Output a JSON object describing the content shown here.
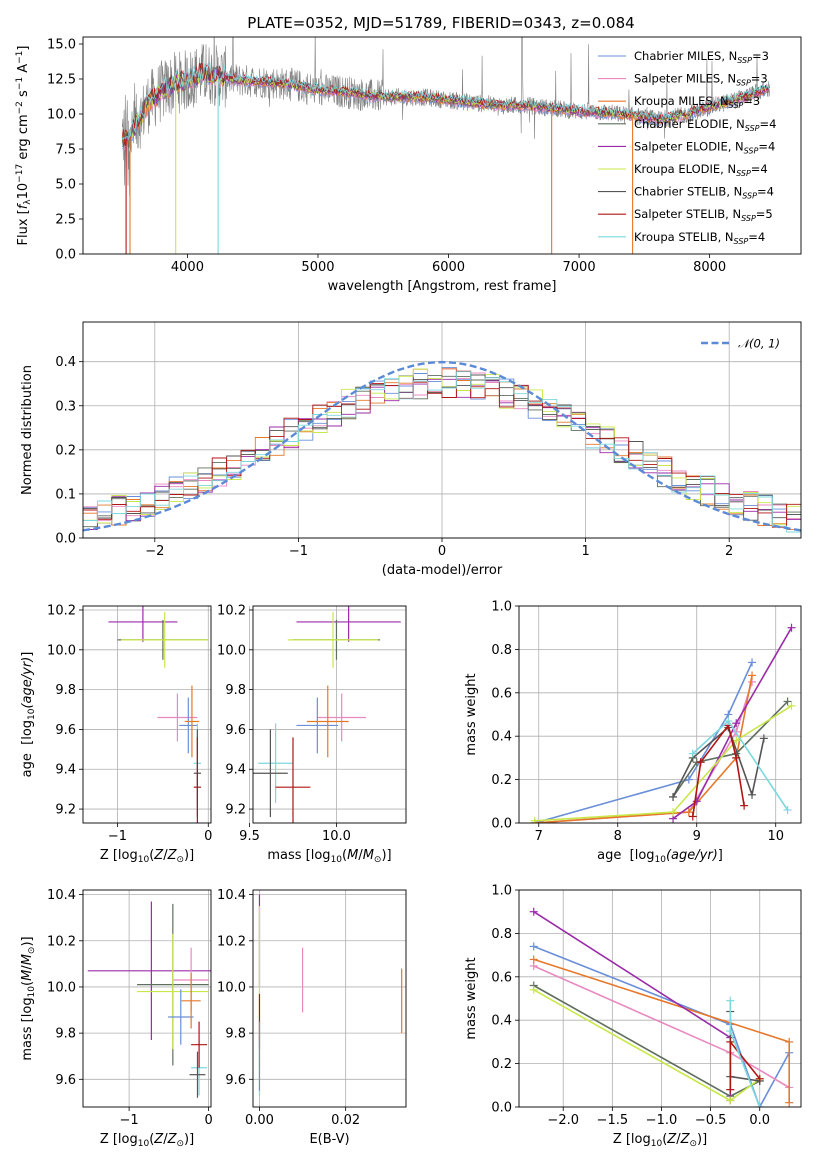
{
  "title": "PLATE=0352, MJD=51789, FIBERID=0343, z=0.084",
  "colors": {
    "Chabrier MILES": "#6a8fd8",
    "Salpeter MILES": "#e889c0",
    "Kroupa MILES": "#e6782a",
    "Chabrier ELODIE": "#5f6f5f",
    "Salpeter ELODIE": "#9a2ba8",
    "Kroupa ELODIE": "#c8e84a",
    "Chabrier STELIB": "#555555",
    "Salpeter STELIB": "#b01515",
    "Kroupa STELIB": "#7dd8de",
    "data": "#808080",
    "gauss": "#5b8bd6"
  },
  "chart_data": [
    {
      "id": "spectrum",
      "type": "line",
      "xlabel": "wavelength [Angstrom, rest frame]",
      "ylabel": "Flux [f_λ 10^-17 erg cm^-2 s^-1 A^-1]",
      "xlim": [
        3200,
        8700
      ],
      "ylim": [
        0,
        15.5
      ],
      "xticks": [
        4000,
        5000,
        6000,
        7000,
        8000
      ],
      "yticks": [
        0.0,
        2.5,
        5.0,
        7.5,
        10.0,
        12.5,
        15.0
      ],
      "ytick_labels": [
        "0.0",
        "2.5",
        "5.0",
        "7.5",
        "10.0",
        "12.5",
        "15.0"
      ],
      "legend_loc": "upper right",
      "legend": [
        {
          "name": "Chabrier MILES",
          "nssp": "3"
        },
        {
          "name": "Salpeter MILES",
          "nssp": "3"
        },
        {
          "name": "Kroupa MILES",
          "nssp": "3"
        },
        {
          "name": "Chabrier ELODIE",
          "nssp": "4"
        },
        {
          "name": "Salpeter ELODIE",
          "nssp": "4"
        },
        {
          "name": "Kroupa ELODIE",
          "nssp": "4"
        },
        {
          "name": "Chabrier STELIB",
          "nssp": "4"
        },
        {
          "name": "Salpeter STELIB",
          "nssp": "5"
        },
        {
          "name": "Kroupa STELIB",
          "nssp": "4"
        }
      ],
      "continuum": {
        "x": [
          3550,
          3700,
          3800,
          3900,
          4000,
          4100,
          4200,
          4400,
          4600,
          4800,
          5000,
          5200,
          5400,
          5600,
          5800,
          6000,
          6200,
          6400,
          6600,
          6800,
          7000,
          7200,
          7400,
          7600,
          7800,
          8000,
          8200,
          8450
        ],
        "y": [
          8.2,
          10.8,
          11.6,
          12.2,
          12.4,
          12.9,
          12.8,
          12.4,
          12.3,
          12.1,
          11.7,
          11.6,
          11.3,
          11.2,
          11.2,
          11.0,
          10.8,
          10.6,
          10.6,
          10.4,
          10.2,
          10.1,
          9.9,
          9.6,
          9.9,
          10.5,
          11.0,
          11.8
        ]
      }
    },
    {
      "id": "residuals",
      "type": "line",
      "xlabel": "(data-model)/error",
      "ylabel": "Normed distribution",
      "xlim": [
        -2.5,
        2.5
      ],
      "ylim": [
        0,
        0.49
      ],
      "xticks": [
        -2,
        -1,
        0,
        1,
        2
      ],
      "yticks": [
        0.0,
        0.1,
        0.2,
        0.3,
        0.4
      ],
      "ytick_labels": [
        "0.0",
        "0.1",
        "0.2",
        "0.3",
        "0.4"
      ],
      "legend_label": "𝒩(0, 1)",
      "bin_width": 0.1
    },
    {
      "id": "age_vs_Z",
      "type": "scatter",
      "xlabel": "Z [log10(Z/Z⊙)]",
      "ylabel": "age [log10(age/yr)]",
      "xlim": [
        -1.38,
        0.03
      ],
      "ylim": [
        9.13,
        10.22
      ],
      "xticks": [
        -1,
        0
      ],
      "yticks": [
        9.2,
        9.4,
        9.6,
        9.8,
        10.0,
        10.2
      ],
      "points": [
        {
          "model": "Salpeter ELODIE",
          "x": -0.72,
          "xerr": 0.38,
          "y": 10.14,
          "yerr": 0.1
        },
        {
          "model": "Chabrier ELODIE",
          "x": -0.5,
          "xerr": 0.5,
          "y": 10.05,
          "yerr": 0.1
        },
        {
          "model": "Kroupa ELODIE",
          "x": -0.48,
          "xerr": 0.48,
          "y": 10.05,
          "yerr": 0.14
        },
        {
          "model": "Salpeter MILES",
          "x": -0.34,
          "xerr": 0.22,
          "y": 9.66,
          "yerr": 0.12
        },
        {
          "model": "Chabrier MILES",
          "x": -0.22,
          "xerr": 0.1,
          "y": 9.62,
          "yerr": 0.14
        },
        {
          "model": "Kroupa MILES",
          "x": -0.18,
          "xerr": 0.08,
          "y": 9.64,
          "yerr": 0.18
        },
        {
          "model": "Kroupa STELIB",
          "x": -0.12,
          "xerr": 0.04,
          "y": 9.43,
          "yerr": 0.2
        },
        {
          "model": "Chabrier STELIB",
          "x": -0.12,
          "xerr": 0.04,
          "y": 9.38,
          "yerr": 0.22
        },
        {
          "model": "Salpeter STELIB",
          "x": -0.12,
          "xerr": 0.04,
          "y": 9.31,
          "yerr": 0.25
        }
      ]
    },
    {
      "id": "age_vs_mass",
      "type": "scatter",
      "xlabel": "mass [log10(M/M⊙)]",
      "ylabel": "",
      "xlim": [
        9.52,
        10.4
      ],
      "ylim": [
        9.13,
        10.22
      ],
      "xticks": [
        9.5,
        10.0
      ],
      "xtick_labels": [
        "9.5",
        "10.0"
      ],
      "yticks": [
        9.2,
        9.4,
        9.6,
        9.8,
        10.0,
        10.2
      ],
      "points": [
        {
          "model": "Salpeter ELODIE",
          "x": 10.07,
          "xerr": 0.3,
          "y": 10.14,
          "yerr": 0.1
        },
        {
          "model": "Chabrier ELODIE",
          "x": 10.0,
          "xerr": 0.25,
          "y": 10.05,
          "yerr": 0.1
        },
        {
          "model": "Kroupa ELODIE",
          "x": 9.98,
          "xerr": 0.26,
          "y": 10.05,
          "yerr": 0.14
        },
        {
          "model": "Salpeter MILES",
          "x": 10.03,
          "xerr": 0.14,
          "y": 9.66,
          "yerr": 0.12
        },
        {
          "model": "Chabrier MILES",
          "x": 9.89,
          "xerr": 0.12,
          "y": 9.62,
          "yerr": 0.14
        },
        {
          "model": "Kroupa MILES",
          "x": 9.95,
          "xerr": 0.12,
          "y": 9.64,
          "yerr": 0.18
        },
        {
          "model": "Kroupa STELIB",
          "x": 9.65,
          "xerr": 0.1,
          "y": 9.43,
          "yerr": 0.2
        },
        {
          "model": "Chabrier STELIB",
          "x": 9.62,
          "xerr": 0.1,
          "y": 9.38,
          "yerr": 0.22
        },
        {
          "model": "Salpeter STELIB",
          "x": 9.75,
          "xerr": 0.1,
          "y": 9.31,
          "yerr": 0.25
        }
      ]
    },
    {
      "id": "weight_vs_age",
      "type": "line",
      "xlabel": "age [log10(age/yr)]",
      "ylabel": "mass weight",
      "xlim": [
        6.75,
        10.32
      ],
      "ylim": [
        0,
        1.0
      ],
      "xticks": [
        7,
        8,
        9,
        10
      ],
      "yticks": [
        0.0,
        0.2,
        0.4,
        0.6,
        0.8,
        1.0
      ],
      "series": [
        {
          "model": "Chabrier MILES",
          "x": [
            6.95,
            8.9,
            9.4,
            9.7
          ],
          "y": [
            0.0,
            0.2,
            0.5,
            0.74
          ]
        },
        {
          "model": "Salpeter MILES",
          "x": [
            6.95,
            8.9,
            9.5,
            9.7
          ],
          "y": [
            0.0,
            0.05,
            0.42,
            0.65
          ]
        },
        {
          "model": "Kroupa MILES",
          "x": [
            6.95,
            8.9,
            9.5,
            9.7
          ],
          "y": [
            0.0,
            0.05,
            0.3,
            0.68
          ]
        },
        {
          "model": "Chabrier ELODIE",
          "x": [
            8.7,
            9.0,
            9.5,
            10.15
          ],
          "y": [
            0.12,
            0.28,
            0.32,
            0.56
          ]
        },
        {
          "model": "Salpeter ELODIE",
          "x": [
            8.7,
            9.0,
            9.5,
            10.2
          ],
          "y": [
            0.02,
            0.1,
            0.46,
            0.9
          ]
        },
        {
          "model": "Kroupa ELODIE",
          "x": [
            6.95,
            8.7,
            9.5,
            10.2
          ],
          "y": [
            0.01,
            0.05,
            0.38,
            0.54
          ]
        },
        {
          "model": "Chabrier STELIB",
          "x": [
            8.7,
            8.95,
            9.4,
            9.7,
            9.85
          ],
          "y": [
            0.12,
            0.3,
            0.44,
            0.13,
            0.39
          ]
        },
        {
          "model": "Salpeter STELIB",
          "x": [
            8.95,
            9.05,
            9.4,
            9.5,
            9.6
          ],
          "y": [
            0.03,
            0.28,
            0.45,
            0.3,
            0.08
          ]
        },
        {
          "model": "Kroupa STELIB",
          "x": [
            8.95,
            9.4,
            10.15
          ],
          "y": [
            0.32,
            0.47,
            0.06
          ]
        }
      ]
    },
    {
      "id": "mass_vs_Z",
      "type": "scatter",
      "xlabel": "Z [log10(Z/Z⊙)]",
      "ylabel": "mass [log10(M/M⊙)]",
      "xlim": [
        -1.58,
        0.03
      ],
      "ylim": [
        9.48,
        10.42
      ],
      "xticks": [
        -1,
        0
      ],
      "yticks": [
        9.6,
        9.8,
        10.0,
        10.2,
        10.4
      ],
      "points": [
        {
          "model": "Salpeter ELODIE",
          "x": -0.72,
          "xerr": 0.8,
          "y": 10.07,
          "yerr": 0.3
        },
        {
          "model": "Chabrier ELODIE",
          "x": -0.45,
          "xerr": 0.45,
          "y": 10.01,
          "yerr": 0.35
        },
        {
          "model": "Kroupa ELODIE",
          "x": -0.45,
          "xerr": 0.45,
          "y": 9.98,
          "yerr": 0.25
        },
        {
          "model": "Salpeter MILES",
          "x": -0.22,
          "xerr": 0.22,
          "y": 10.03,
          "yerr": 0.14
        },
        {
          "model": "Chabrier MILES",
          "x": -0.35,
          "xerr": 0.16,
          "y": 9.87,
          "yerr": 0.12
        },
        {
          "model": "Kroupa MILES",
          "x": -0.22,
          "xerr": 0.12,
          "y": 9.94,
          "yerr": 0.12
        },
        {
          "model": "Kroupa STELIB",
          "x": -0.12,
          "xerr": 0.1,
          "y": 9.65,
          "yerr": 0.12
        },
        {
          "model": "Chabrier STELIB",
          "x": -0.14,
          "xerr": 0.1,
          "y": 9.62,
          "yerr": 0.1
        },
        {
          "model": "Salpeter STELIB",
          "x": -0.12,
          "xerr": 0.1,
          "y": 9.75,
          "yerr": 0.1
        }
      ]
    },
    {
      "id": "mass_vs_EBV",
      "type": "scatter",
      "xlabel": "E(B-V)",
      "ylabel": "",
      "xlim": [
        -0.0015,
        0.034
      ],
      "ylim": [
        9.48,
        10.42
      ],
      "xticks": [
        0.0,
        0.02
      ],
      "xtick_labels": [
        "0.00",
        "0.02"
      ],
      "yticks": [
        9.6,
        9.8,
        10.0,
        10.2,
        10.4
      ],
      "points": [
        {
          "model": "Salpeter ELODIE",
          "x": 0.0,
          "y": 10.2,
          "yerr": 0.2
        },
        {
          "model": "Kroupa ELODIE",
          "x": 0.0,
          "y": 10.0,
          "yerr": 0.35
        },
        {
          "model": "Salpeter STELIB",
          "x": 0.0,
          "y": 9.85,
          "yerr": 0.12
        },
        {
          "model": "Kroupa STELIB",
          "x": 0.0,
          "y": 9.65,
          "yerr": 0.12
        },
        {
          "model": "Chabrier MILES",
          "x": 0.0,
          "y": 9.7,
          "yerr": 0.15
        },
        {
          "model": "Salpeter MILES",
          "x": 0.01,
          "y": 10.03,
          "yerr": 0.14
        },
        {
          "model": "Kroupa MILES",
          "x": 0.033,
          "y": 9.94,
          "yerr": 0.14
        }
      ]
    },
    {
      "id": "weight_vs_Z",
      "type": "line",
      "xlabel": "Z [log10(Z/Z⊙)]",
      "ylabel": "mass weight",
      "xlim": [
        -2.45,
        0.42
      ],
      "ylim": [
        0,
        1.0
      ],
      "xticks": [
        -2.0,
        -1.5,
        -1.0,
        -0.5,
        0.0
      ],
      "xtick_labels": [
        "−2.0",
        "−1.5",
        "−1.0",
        "−0.5",
        "0.0"
      ],
      "yticks": [
        0.0,
        0.2,
        0.4,
        0.6,
        0.8,
        1.0
      ],
      "series": [
        {
          "model": "Chabrier MILES",
          "x": [
            -2.3,
            -0.3,
            0.0,
            0.3
          ],
          "y": [
            0.74,
            0.38,
            0.0,
            0.25
          ]
        },
        {
          "model": "Salpeter MILES",
          "x": [
            -2.3,
            -0.3,
            0.3
          ],
          "y": [
            0.65,
            0.25,
            0.09
          ]
        },
        {
          "model": "Kroupa MILES",
          "x": [
            -2.3,
            0.3,
            0.3
          ],
          "y": [
            0.68,
            0.3,
            0.02
          ]
        },
        {
          "model": "Chabrier ELODIE",
          "x": [
            -2.3,
            -0.3,
            0.0
          ],
          "y": [
            0.56,
            0.05,
            0.12
          ]
        },
        {
          "model": "Salpeter ELODIE",
          "x": [
            -2.3,
            -0.3,
            -0.3
          ],
          "y": [
            0.9,
            0.32,
            0.03
          ]
        },
        {
          "model": "Kroupa ELODIE",
          "x": [
            -2.3,
            -0.3,
            0.0
          ],
          "y": [
            0.54,
            0.03,
            0.13
          ]
        },
        {
          "model": "Chabrier STELIB",
          "x": [
            -0.3,
            -0.3,
            0.0
          ],
          "y": [
            0.44,
            0.14,
            0.12
          ]
        },
        {
          "model": "Salpeter STELIB",
          "x": [
            -0.3,
            -0.3,
            0.0
          ],
          "y": [
            0.08,
            0.3,
            0.13
          ]
        },
        {
          "model": "Kroupa STELIB",
          "x": [
            -0.3,
            -0.3,
            0.0
          ],
          "y": [
            0.49,
            0.35,
            0.0
          ]
        }
      ]
    }
  ]
}
